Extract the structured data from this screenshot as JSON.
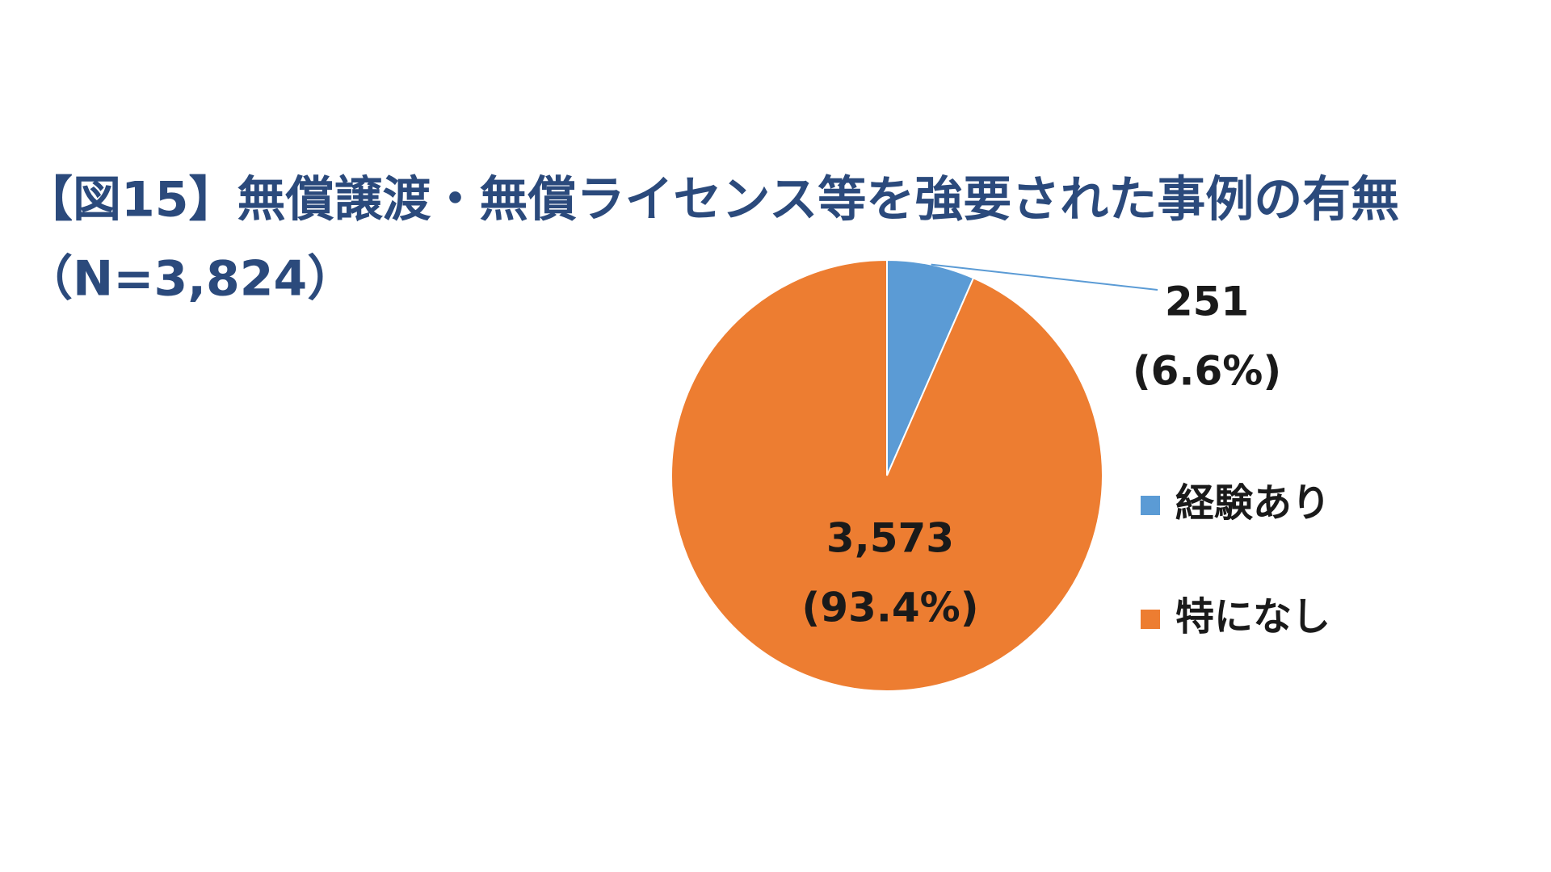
{
  "chart_data": {
    "type": "pie",
    "title": "【図15】無償譲渡・無償ライセンス等を強要された事例の有無",
    "subtitle": "（N=3,824）",
    "categories": [
      "経験あり",
      "特になし"
    ],
    "values": [
      251,
      3573
    ],
    "value_labels": [
      "251",
      "3,573"
    ],
    "percent_labels": [
      "(6.6%)",
      "(93.4%)"
    ],
    "colors": [
      "#5b9bd5",
      "#ed7d31"
    ],
    "legend": "right"
  }
}
